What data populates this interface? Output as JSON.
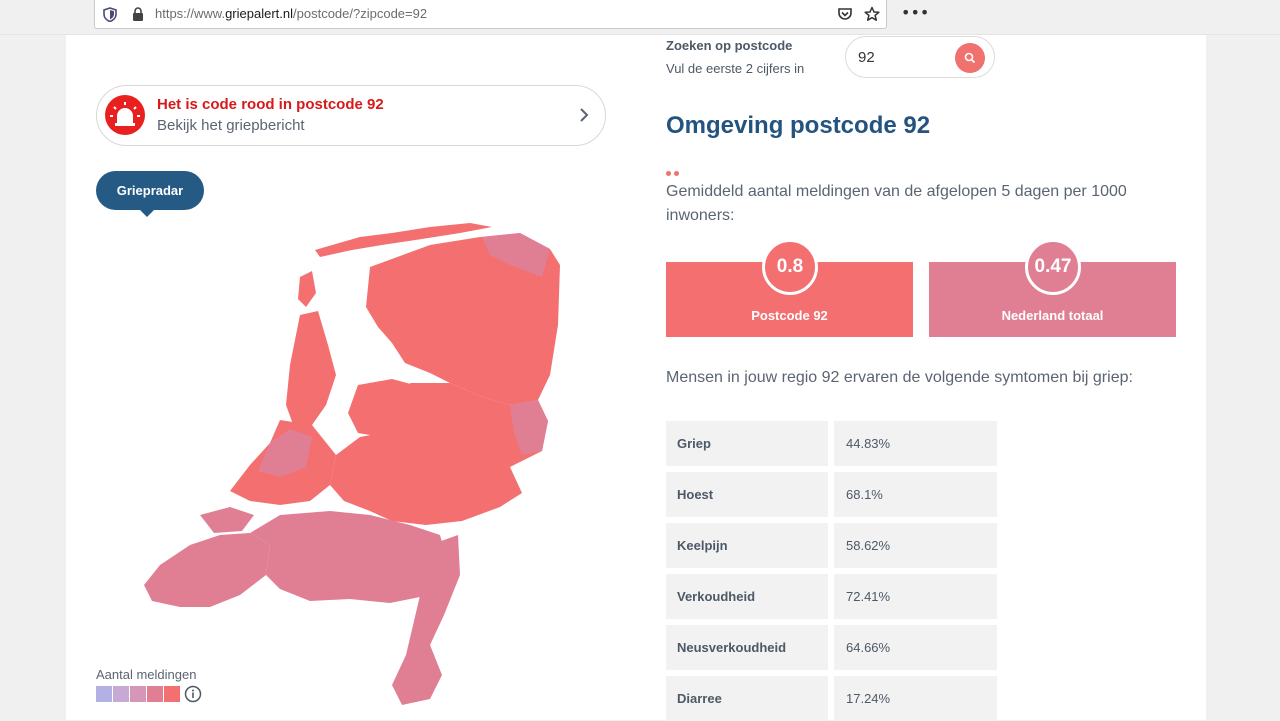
{
  "browser": {
    "url_prefix": "https://www.",
    "url_domain": "griepalert.nl",
    "url_path": "/postcode/?zipcode=92",
    "more_label": "•••"
  },
  "search": {
    "label": "Zoeken op postcode",
    "sublabel": "Vul de eerste 2 cijfers in",
    "value": "92"
  },
  "alert": {
    "title": "Het is code rood in postcode 92",
    "subtitle": "Bekijk het griepbericht"
  },
  "radar": {
    "label": "Griepradar"
  },
  "legend": {
    "label": "Aantal meldingen",
    "colors": [
      "#b3b0e3",
      "#c7a9d6",
      "#d596b8",
      "#e07f93",
      "#f36f70"
    ]
  },
  "region": {
    "title": "Omgeving postcode 92",
    "description": "Gemiddeld aantal meldingen van de afgelopen 5 dagen per 1000 inwoners:"
  },
  "stats": [
    {
      "value": "0.8",
      "label": "Postcode 92",
      "color": "#f36f70"
    },
    {
      "value": "0.47",
      "label": "Nederland totaal",
      "color": "#e07f93"
    }
  ],
  "symptoms": {
    "intro": "Mensen in jouw regio 92 ervaren de volgende symtomen bij griep:",
    "rows": [
      {
        "name": "Griep",
        "value": "44.83%"
      },
      {
        "name": "Hoest",
        "value": "68.1%"
      },
      {
        "name": "Keelpijn",
        "value": "58.62%"
      },
      {
        "name": "Verkoudheid",
        "value": "72.41%"
      },
      {
        "name": "Neusverkoudheid",
        "value": "64.66%"
      },
      {
        "name": "Diarree",
        "value": "17.24%"
      }
    ]
  },
  "colors": {
    "brand_blue": "#235480",
    "alert_red": "#d7191c",
    "map_high": "#f36f70",
    "map_mid": "#e07f93"
  }
}
